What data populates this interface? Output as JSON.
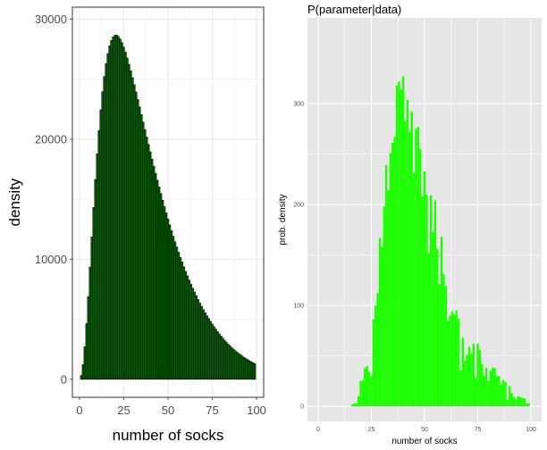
{
  "chart_data": [
    {
      "type": "bar",
      "title": "",
      "xlabel": "number of socks",
      "ylabel": "density",
      "xlim": [
        -4,
        104
      ],
      "ylim": [
        -1500,
        31000
      ],
      "xticks": [
        0,
        25,
        50,
        75,
        100
      ],
      "yticks": [
        0,
        10000,
        20000,
        30000
      ],
      "xtick_labels": [
        "0",
        "25",
        "50",
        "75",
        "100"
      ],
      "ytick_labels": [
        "0",
        "10000",
        "20000",
        "30000"
      ],
      "bin_width": 1,
      "bar_fill": "#006400",
      "bar_outline": "#000000",
      "panel_bg": "#ffffff",
      "grid_color": "#ebebeb",
      "grid": true,
      "x": [
        1,
        2,
        3,
        4,
        5,
        6,
        7,
        8,
        9,
        10,
        11,
        12,
        13,
        14,
        15,
        16,
        17,
        18,
        19,
        20,
        21,
        22,
        23,
        24,
        25,
        26,
        27,
        28,
        29,
        30,
        31,
        32,
        33,
        34,
        35,
        36,
        37,
        38,
        39,
        40,
        41,
        42,
        43,
        44,
        45,
        46,
        47,
        48,
        49,
        50,
        51,
        52,
        53,
        54,
        55,
        56,
        57,
        58,
        59,
        60,
        61,
        62,
        63,
        64,
        65,
        66,
        67,
        68,
        69,
        70,
        71,
        72,
        73,
        74,
        75,
        76,
        77,
        78,
        79,
        80,
        81,
        82,
        83,
        84,
        85,
        86,
        87,
        88,
        89,
        90,
        91,
        92,
        93,
        94,
        95,
        96,
        97,
        98,
        99
      ],
      "values": [
        314,
        1240,
        2710,
        4640,
        6900,
        9350,
        11860,
        14320,
        16650,
        18790,
        20730,
        22450,
        23950,
        25230,
        26290,
        27140,
        27780,
        28230,
        28520,
        28660,
        28670,
        28560,
        28350,
        28050,
        27680,
        27250,
        26770,
        26250,
        25700,
        25130,
        24540,
        23930,
        23310,
        22690,
        22060,
        21430,
        20810,
        20180,
        19570,
        18950,
        18350,
        17750,
        17160,
        16590,
        16020,
        15470,
        14920,
        14390,
        13870,
        13360,
        12870,
        12390,
        11920,
        11460,
        11020,
        10590,
        10170,
        9770,
        9370,
        8990,
        8620,
        8270,
        7920,
        7590,
        7270,
        6960,
        6650,
        6360,
        6080,
        5810,
        5550,
        5300,
        5060,
        4830,
        4600,
        4390,
        4180,
        3980,
        3790,
        3610,
        3430,
        3260,
        3100,
        2940,
        2800,
        2650,
        2520,
        2390,
        2260,
        2150,
        2040,
        1930,
        1830,
        1730,
        1640,
        1550,
        1470,
        1390,
        1310
      ]
    },
    {
      "type": "bar",
      "title": "P(parameter|data)",
      "xlabel": "number of socks",
      "ylabel": "prob. density",
      "xlim": [
        -5,
        105
      ],
      "ylim": [
        -15,
        385
      ],
      "xticks": [
        0,
        25,
        50,
        75,
        100
      ],
      "yticks": [
        0,
        100,
        200,
        300
      ],
      "xtick_labels": [
        "0",
        "25",
        "50",
        "75",
        "100"
      ],
      "ytick_labels": [
        "0",
        "100",
        "200",
        "300"
      ],
      "bin_width": 1,
      "bar_fill": "#1cff00",
      "panel_bg": "#e6e6e6",
      "grid_color": "#ffffff",
      "grid": true,
      "x": [
        16,
        17,
        18,
        19,
        20,
        21,
        22,
        23,
        24,
        25,
        26,
        27,
        28,
        29,
        30,
        31,
        32,
        33,
        34,
        35,
        36,
        37,
        38,
        39,
        40,
        41,
        42,
        43,
        44,
        45,
        46,
        47,
        48,
        49,
        50,
        51,
        52,
        53,
        54,
        55,
        56,
        57,
        58,
        59,
        60,
        61,
        62,
        63,
        64,
        65,
        66,
        67,
        68,
        69,
        70,
        71,
        72,
        73,
        74,
        75,
        76,
        77,
        78,
        79,
        80,
        81,
        82,
        83,
        84,
        85,
        86,
        87,
        88,
        89,
        90,
        91,
        92,
        93,
        94,
        95,
        96,
        97,
        98,
        99
      ],
      "values": [
        2,
        3,
        3,
        10,
        25,
        26,
        38,
        40,
        34,
        30,
        86,
        100,
        112,
        167,
        158,
        198,
        239,
        214,
        251,
        261,
        267,
        318,
        322,
        314,
        327,
        283,
        304,
        272,
        292,
        231,
        275,
        277,
        255,
        208,
        233,
        210,
        152,
        209,
        173,
        204,
        156,
        121,
        168,
        131,
        119,
        85,
        90,
        94,
        91,
        95,
        87,
        36,
        68,
        45,
        51,
        59,
        52,
        62,
        28,
        62,
        56,
        42,
        30,
        38,
        25,
        35,
        38,
        38,
        30,
        30,
        22,
        26,
        24,
        6,
        20,
        13,
        9,
        7,
        10,
        9,
        8,
        8,
        3,
        3
      ]
    }
  ]
}
